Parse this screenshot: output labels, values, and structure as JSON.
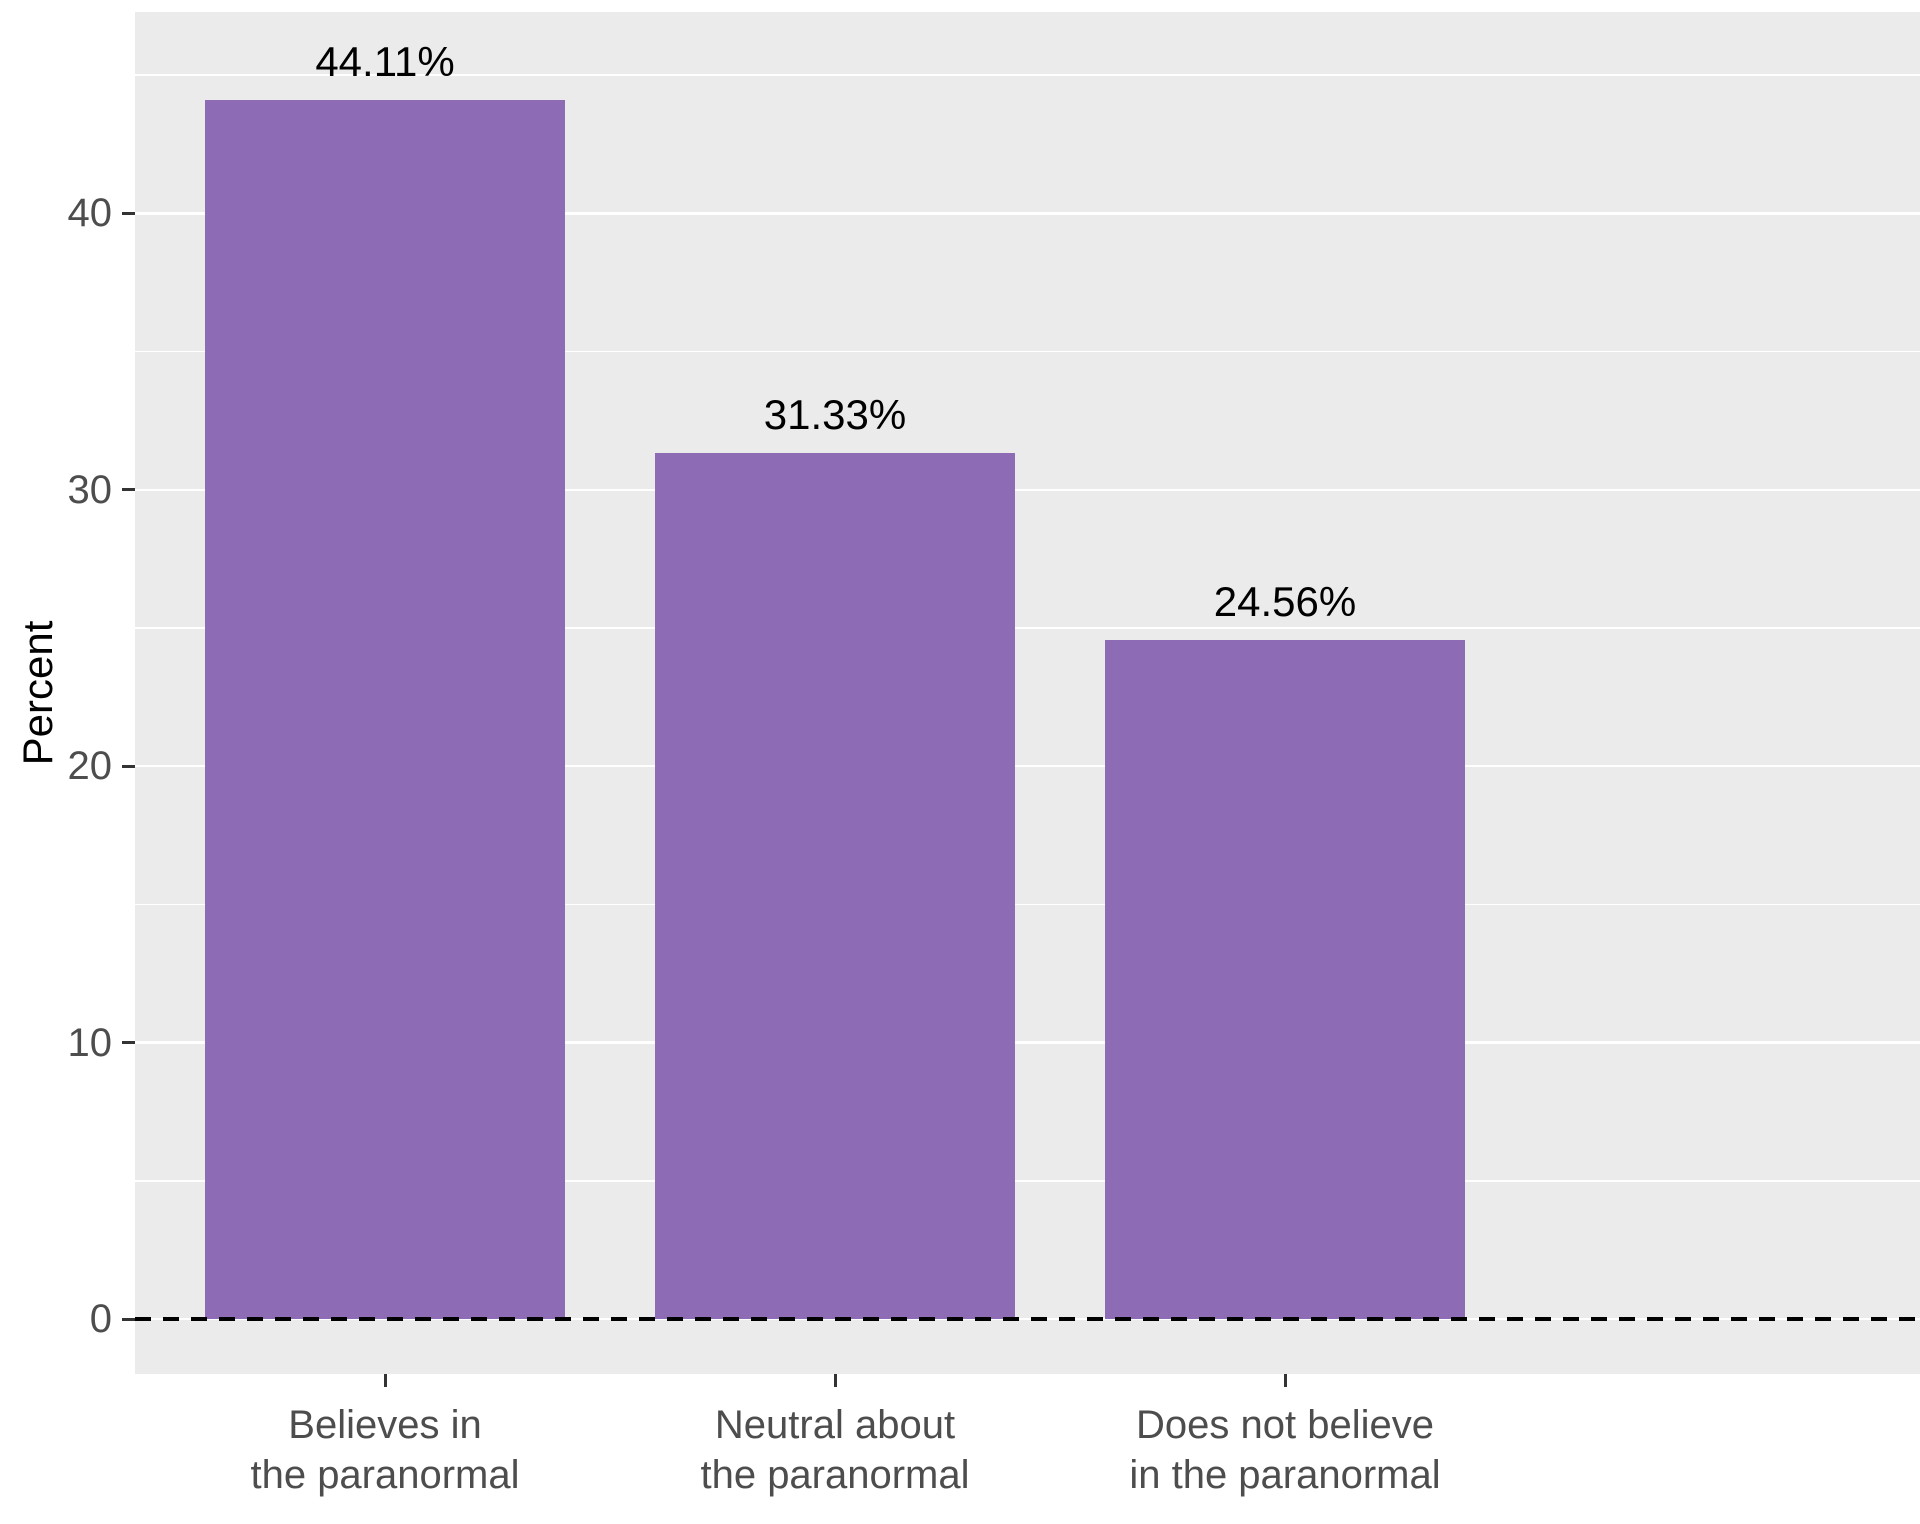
{
  "chart_data": {
    "type": "bar",
    "title": "",
    "categories": [
      "Believes in\nthe paranormal",
      "Neutral about\nthe paranormal",
      "Does not believe\nin the paranormal"
    ],
    "values": [
      44.11,
      31.33,
      24.56
    ],
    "value_labels": [
      "44.11%",
      "31.33%",
      "24.56%"
    ],
    "xlabel": "",
    "ylabel": "Percent",
    "yticks": [
      0,
      10,
      20,
      30,
      40
    ],
    "ylim": [
      -2,
      47.4
    ],
    "grid": {
      "major": [
        0,
        10,
        20,
        30,
        40
      ],
      "minor": [
        5,
        15,
        25,
        35,
        45
      ]
    },
    "legend_position": "none",
    "bar_color": "#8D6BB5",
    "panel_background": "#EBEBEB",
    "gridline_color": "#FFFFFF",
    "axis_text_color": "#4D4D4D",
    "zero_line": {
      "value": 0,
      "style": "dashed",
      "color": "#000000"
    }
  }
}
